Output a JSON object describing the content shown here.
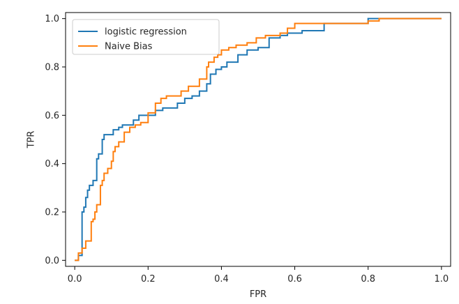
{
  "chart_data": {
    "type": "line",
    "title": "",
    "xlabel": "FPR",
    "ylabel": "TPR",
    "xlim": [
      -0.025,
      1.025
    ],
    "ylim": [
      -0.025,
      1.025
    ],
    "xticks": [
      0.0,
      0.2,
      0.4,
      0.6,
      0.8,
      1.0
    ],
    "yticks": [
      0.0,
      0.2,
      0.4,
      0.6,
      0.8,
      1.0
    ],
    "xtick_labels": [
      "0.0",
      "0.2",
      "0.4",
      "0.6",
      "0.8",
      "1.0"
    ],
    "ytick_labels": [
      "0.0",
      "0.2",
      "0.4",
      "0.6",
      "0.8",
      "1.0"
    ],
    "grid": false,
    "legend_position": "top-left",
    "series": [
      {
        "name": "logistic regression",
        "color": "#1f77b4",
        "step": true,
        "x": [
          0.0,
          0.01,
          0.02,
          0.025,
          0.03,
          0.035,
          0.04,
          0.05,
          0.06,
          0.065,
          0.075,
          0.08,
          0.09,
          0.105,
          0.12,
          0.13,
          0.145,
          0.16,
          0.175,
          0.2,
          0.22,
          0.24,
          0.28,
          0.3,
          0.32,
          0.34,
          0.36,
          0.37,
          0.385,
          0.4,
          0.415,
          0.445,
          0.47,
          0.5,
          0.53,
          0.56,
          0.58,
          0.62,
          0.68,
          0.8,
          0.82,
          1.0
        ],
        "y": [
          0.0,
          0.02,
          0.2,
          0.22,
          0.26,
          0.29,
          0.31,
          0.33,
          0.42,
          0.44,
          0.5,
          0.52,
          0.52,
          0.54,
          0.55,
          0.56,
          0.56,
          0.58,
          0.6,
          0.6,
          0.62,
          0.63,
          0.65,
          0.67,
          0.68,
          0.7,
          0.73,
          0.77,
          0.79,
          0.8,
          0.82,
          0.85,
          0.87,
          0.88,
          0.92,
          0.93,
          0.94,
          0.95,
          0.98,
          1.0,
          1.0,
          1.0
        ]
      },
      {
        "name": "Naive Bias",
        "color": "#ff7f0e",
        "step": true,
        "x": [
          0.0,
          0.01,
          0.02,
          0.03,
          0.045,
          0.05,
          0.055,
          0.06,
          0.07,
          0.075,
          0.08,
          0.09,
          0.1,
          0.105,
          0.11,
          0.12,
          0.135,
          0.15,
          0.165,
          0.18,
          0.2,
          0.22,
          0.235,
          0.25,
          0.29,
          0.31,
          0.34,
          0.36,
          0.365,
          0.38,
          0.39,
          0.4,
          0.42,
          0.44,
          0.47,
          0.495,
          0.52,
          0.56,
          0.58,
          0.6,
          0.62,
          0.68,
          0.8,
          0.83,
          1.0
        ],
        "y": [
          0.0,
          0.03,
          0.05,
          0.08,
          0.16,
          0.17,
          0.2,
          0.23,
          0.31,
          0.33,
          0.36,
          0.38,
          0.41,
          0.45,
          0.47,
          0.49,
          0.53,
          0.55,
          0.56,
          0.57,
          0.61,
          0.65,
          0.67,
          0.68,
          0.7,
          0.72,
          0.75,
          0.8,
          0.82,
          0.84,
          0.85,
          0.87,
          0.88,
          0.89,
          0.9,
          0.92,
          0.93,
          0.94,
          0.96,
          0.98,
          0.98,
          0.98,
          0.99,
          1.0,
          1.0
        ]
      }
    ]
  }
}
